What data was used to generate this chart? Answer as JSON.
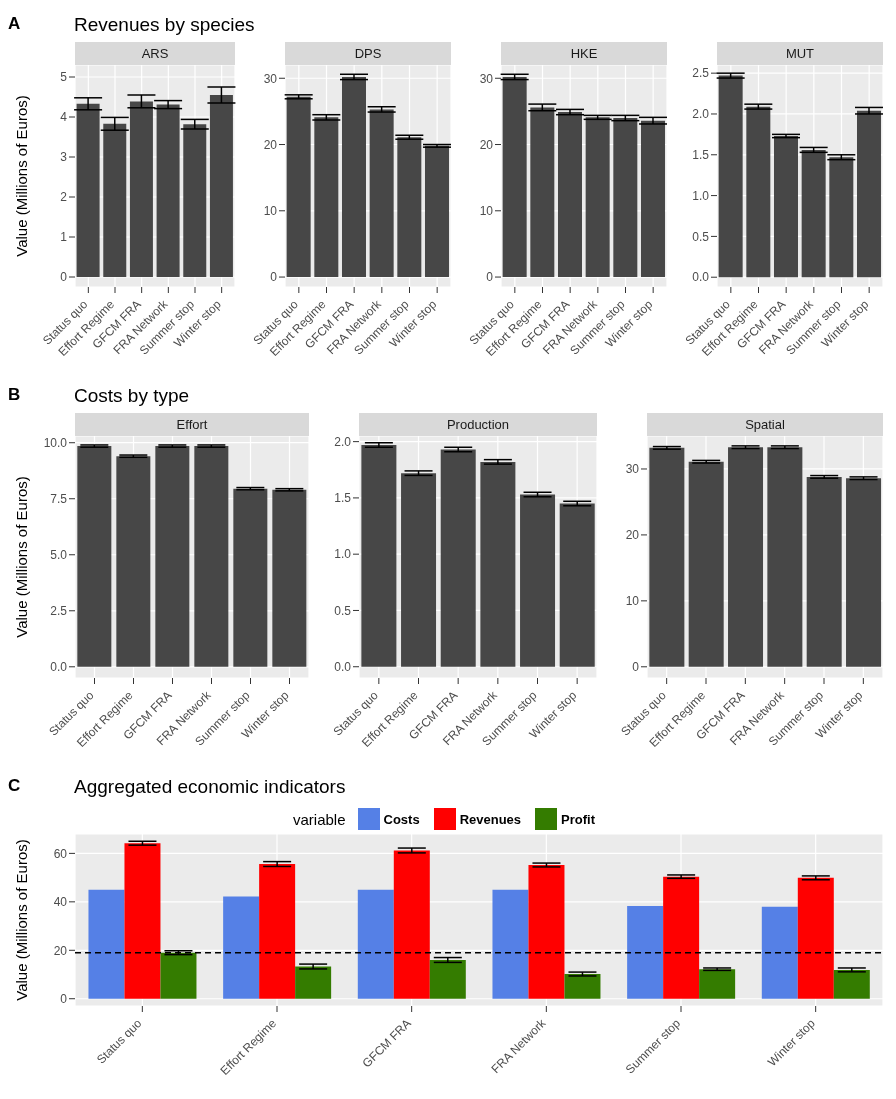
{
  "chart_data": [
    {
      "type": "bar",
      "annotations": [
        "A",
        "Revenues by species"
      ],
      "title": "ARS",
      "ylabel": "Value (Millions of Euros)",
      "categories": [
        "Status quo",
        "Effort Regime",
        "GFCM FRA",
        "FRA Network",
        "Summer stop",
        "Winter stop"
      ],
      "values": [
        4.33,
        3.83,
        4.39,
        4.31,
        3.82,
        4.55
      ],
      "errors": [
        0.15,
        0.16,
        0.16,
        0.1,
        0.12,
        0.2
      ],
      "color": "#474747",
      "ylim": [
        -0.25,
        5.3
      ],
      "yticks": [
        0,
        1,
        2,
        3,
        4,
        5
      ],
      "grid": true
    },
    {
      "type": "bar",
      "title": "DPS",
      "categories": [
        "Status quo",
        "Effort Regime",
        "GFCM FRA",
        "FRA Network",
        "Summer stop",
        "Winter stop"
      ],
      "values": [
        27.2,
        24.1,
        30.2,
        25.3,
        21.1,
        19.8
      ],
      "errors": [
        0.3,
        0.4,
        0.4,
        0.4,
        0.3,
        0.2
      ],
      "color": "#474747",
      "ylim": [
        -1.5,
        32
      ],
      "yticks": [
        0,
        10,
        20,
        30
      ],
      "grid": true
    },
    {
      "type": "bar",
      "title": "HKE",
      "categories": [
        "Status quo",
        "Effort Regime",
        "GFCM FRA",
        "FRA Network",
        "Summer stop",
        "Winter stop"
      ],
      "values": [
        30.2,
        25.6,
        24.9,
        24.1,
        24.0,
        23.6
      ],
      "errors": [
        0.4,
        0.5,
        0.4,
        0.3,
        0.4,
        0.5
      ],
      "color": "#474747",
      "ylim": [
        -1.5,
        32
      ],
      "yticks": [
        0,
        10,
        20,
        30
      ],
      "grid": true
    },
    {
      "type": "bar",
      "title": "MUT",
      "categories": [
        "Status quo",
        "Effort Regime",
        "GFCM FRA",
        "FRA Network",
        "Summer stop",
        "Winter stop"
      ],
      "values": [
        2.47,
        2.09,
        1.73,
        1.56,
        1.47,
        2.04
      ],
      "errors": [
        0.03,
        0.03,
        0.02,
        0.03,
        0.03,
        0.04
      ],
      "color": "#474747",
      "ylim": [
        -0.12,
        2.6
      ],
      "yticks": [
        {
          "value": 0,
          "label": "0.0"
        },
        {
          "value": 0.5,
          "label": "0.5"
        },
        {
          "value": 1,
          "label": "1.0"
        },
        {
          "value": 1.5,
          "label": "1.5"
        },
        {
          "value": 2,
          "label": "2.0"
        },
        {
          "value": 2.5,
          "label": "2.5"
        }
      ],
      "grid": true
    },
    {
      "type": "bar",
      "annotations": [
        "B",
        "Costs by type"
      ],
      "title": "Effort",
      "ylabel": "Value (Millions of Euros)",
      "categories": [
        "Status quo",
        "Effort Regime",
        "GFCM FRA",
        "FRA Network",
        "Summer stop",
        "Winter stop"
      ],
      "values": [
        9.85,
        9.4,
        9.85,
        9.85,
        7.95,
        7.9
      ],
      "errors": [
        0.05,
        0.05,
        0.05,
        0.05,
        0.05,
        0.05
      ],
      "color": "#474747",
      "ylim": [
        -0.5,
        10.3
      ],
      "yticks": [
        {
          "value": 0,
          "label": "0.0"
        },
        {
          "value": 2.5,
          "label": "2.5"
        },
        {
          "value": 5,
          "label": "5.0"
        },
        {
          "value": 7.5,
          "label": "7.5"
        },
        {
          "value": 10,
          "label": "10.0"
        }
      ],
      "grid": true
    },
    {
      "type": "bar",
      "title": "Production",
      "categories": [
        "Status quo",
        "Effort Regime",
        "GFCM FRA",
        "FRA Network",
        "Summer stop",
        "Winter stop"
      ],
      "values": [
        1.97,
        1.72,
        1.93,
        1.82,
        1.53,
        1.45
      ],
      "errors": [
        0.02,
        0.02,
        0.02,
        0.02,
        0.02,
        0.02
      ],
      "color": "#474747",
      "ylim": [
        -0.1,
        2.05
      ],
      "yticks": [
        {
          "value": 0,
          "label": "0.0"
        },
        {
          "value": 0.5,
          "label": "0.5"
        },
        {
          "value": 1,
          "label": "1.0"
        },
        {
          "value": 1.5,
          "label": "1.5"
        },
        {
          "value": 2,
          "label": "2.0"
        }
      ],
      "grid": true
    },
    {
      "type": "bar",
      "title": "Spatial",
      "categories": [
        "Status quo",
        "Effort Regime",
        "GFCM FRA",
        "FRA Network",
        "Summer stop",
        "Winter stop"
      ],
      "values": [
        33.2,
        31.1,
        33.3,
        33.3,
        28.8,
        28.6
      ],
      "errors": [
        0.2,
        0.2,
        0.2,
        0.2,
        0.2,
        0.2
      ],
      "color": "#474747",
      "ylim": [
        -1.7,
        35
      ],
      "yticks": [
        0,
        10,
        20,
        30
      ],
      "grid": true
    },
    {
      "type": "bar",
      "annotations": [
        "C",
        "Aggregated economic indicators"
      ],
      "ylabel": "Value (Millions of Euros)",
      "legend": "top",
      "legend_title": "variable",
      "categories": [
        "Status quo",
        "Effort Regime",
        "GFCM FRA",
        "FRA Network",
        "Summer stop",
        "Winter stop"
      ],
      "series": [
        {
          "name": "Costs",
          "color": "#5580e6",
          "values": [
            45,
            42.2,
            45,
            45,
            38.3,
            38
          ]
        },
        {
          "name": "Revenues",
          "color": "#ff0000",
          "values": [
            64.2,
            55.6,
            61.2,
            55.2,
            50.4,
            49.9
          ],
          "errors": [
            0.8,
            1,
            1,
            0.8,
            0.7,
            0.8
          ]
        },
        {
          "name": "Profit",
          "color": "#347c00",
          "values": [
            19,
            13.3,
            16,
            10.2,
            12.2,
            11.9
          ],
          "errors": [
            0.8,
            1,
            1,
            0.8,
            0.5,
            0.8
          ]
        }
      ],
      "ylim": [
        -3,
        68
      ],
      "yticks": [
        0,
        20,
        40,
        60
      ],
      "grid": true,
      "ref_lines": [
        {
          "axis": "y",
          "value": 19,
          "line_style": "dashed"
        }
      ]
    }
  ]
}
